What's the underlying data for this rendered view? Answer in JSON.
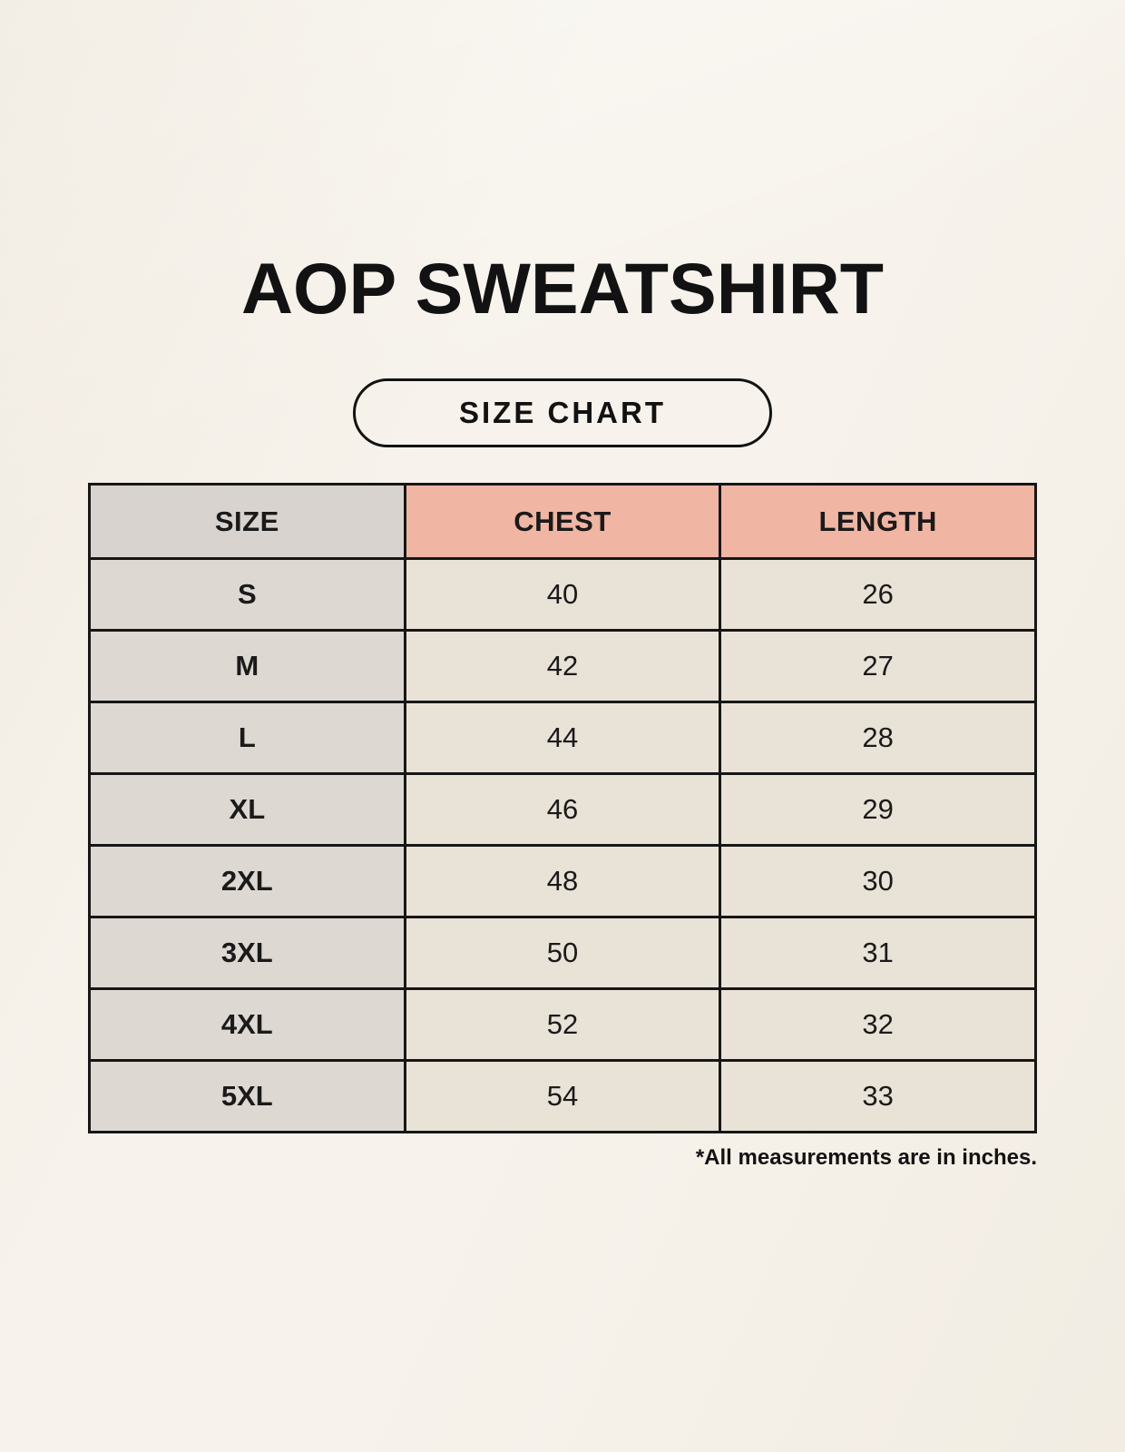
{
  "page": {
    "title": "AOP SWEATSHIRT",
    "badge_label": "SIZE CHART",
    "footnote": "*All measurements are in inches."
  },
  "chart_data": {
    "type": "table",
    "title": "AOP SWEATSHIRT",
    "subtitle": "SIZE CHART",
    "units": "inches",
    "columns": [
      "SIZE",
      "CHEST",
      "LENGTH"
    ],
    "rows": [
      {
        "size": "S",
        "chest": "40",
        "length": "26"
      },
      {
        "size": "M",
        "chest": "42",
        "length": "27"
      },
      {
        "size": "L",
        "chest": "44",
        "length": "28"
      },
      {
        "size": "XL",
        "chest": "46",
        "length": "29"
      },
      {
        "size": "2XL",
        "chest": "48",
        "length": "30"
      },
      {
        "size": "3XL",
        "chest": "50",
        "length": "31"
      },
      {
        "size": "4XL",
        "chest": "52",
        "length": "32"
      },
      {
        "size": "5XL",
        "chest": "54",
        "length": "33"
      }
    ],
    "note": "*All measurements are in inches."
  },
  "colors": {
    "background": "#f7f3ec",
    "accent_header": "#f0b5a3",
    "size_column": "#ded8d2",
    "measure_cells": "#e9e2d6",
    "border": "#161616",
    "text": "#1a1a1a"
  }
}
